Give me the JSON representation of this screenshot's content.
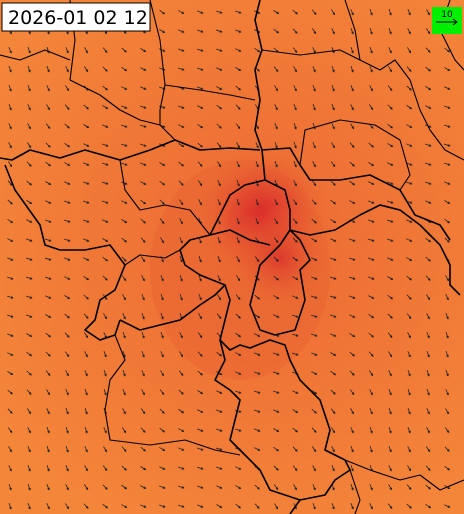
{
  "timestamp": "2026-01 02 12",
  "legend": {
    "wind_scale": "10"
  }
}
